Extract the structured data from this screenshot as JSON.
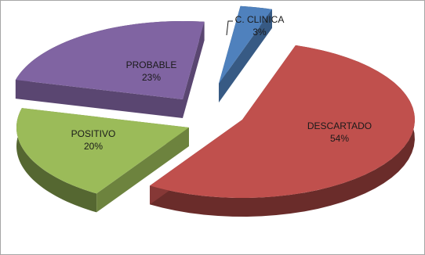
{
  "chart_data": {
    "type": "pie",
    "style": "3d-exploded",
    "title": "",
    "slices": [
      {
        "label": "DESCARTADO",
        "value": 54,
        "value_label": "54%",
        "color": "#c0504d"
      },
      {
        "label": "POSITIVO",
        "value": 20,
        "value_label": "20%",
        "color": "#9bbb59"
      },
      {
        "label": "PROBABLE",
        "value": 23,
        "value_label": "23%",
        "color": "#8064a2"
      },
      {
        "label": "C. CLINICA",
        "value": 3,
        "value_label": "3%",
        "color": "#4f81bd"
      }
    ],
    "legend": "none"
  }
}
